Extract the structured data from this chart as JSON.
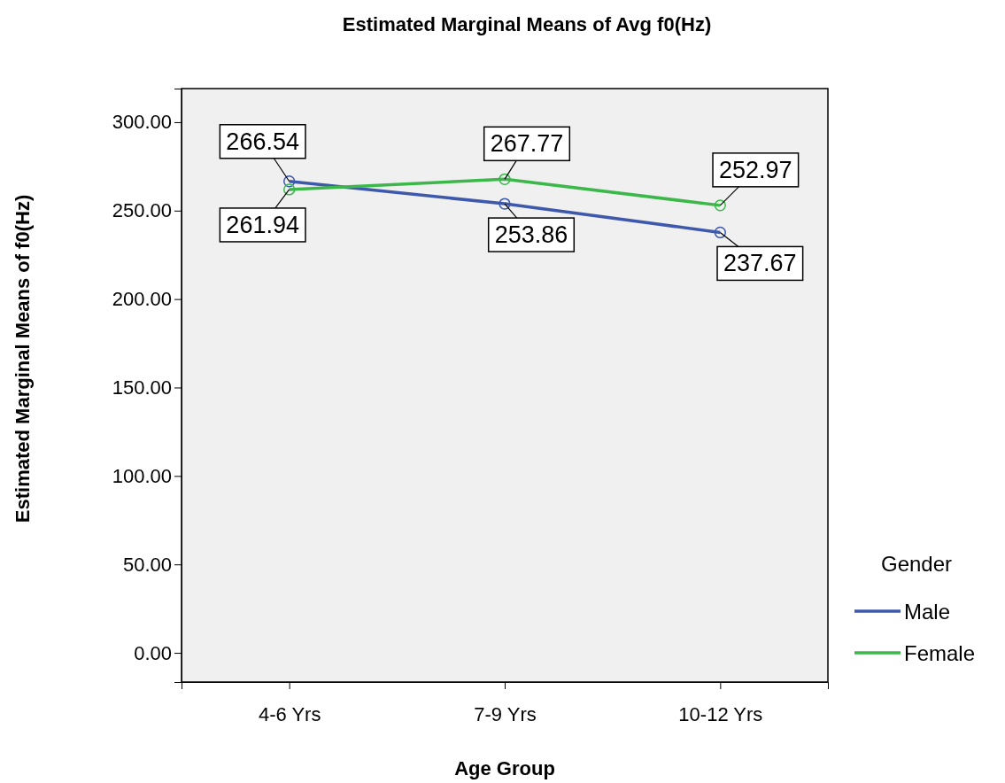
{
  "chart_data": {
    "type": "line",
    "title": "Estimated Marginal Means of Avg f0(Hz)",
    "xlabel": "Age Group",
    "ylabel": "Estimated Marginal Means of f0(Hz)",
    "legend_title": "Gender",
    "categories": [
      "4-6 Yrs",
      "7-9 Yrs",
      "10-12 Yrs"
    ],
    "series": [
      {
        "name": "Male",
        "color": "#3e58ac",
        "values": [
          266.54,
          253.86,
          237.67
        ]
      },
      {
        "name": "Female",
        "color": "#3cb84a",
        "values": [
          261.94,
          267.77,
          252.97
        ]
      }
    ],
    "ylim": [
      -16.5,
      319
    ],
    "yticks": [
      {
        "value": 0,
        "label": "0.00"
      },
      {
        "value": 50,
        "label": "50.00"
      },
      {
        "value": 100,
        "label": "100.00"
      },
      {
        "value": 150,
        "label": "150.00"
      },
      {
        "value": 200,
        "label": "200.00"
      },
      {
        "value": 250,
        "label": "250.00"
      },
      {
        "value": 300,
        "label": "300.00"
      }
    ],
    "marker": "circle",
    "line_style": "solid",
    "data_labels": true,
    "legend": "right",
    "grid": false
  }
}
